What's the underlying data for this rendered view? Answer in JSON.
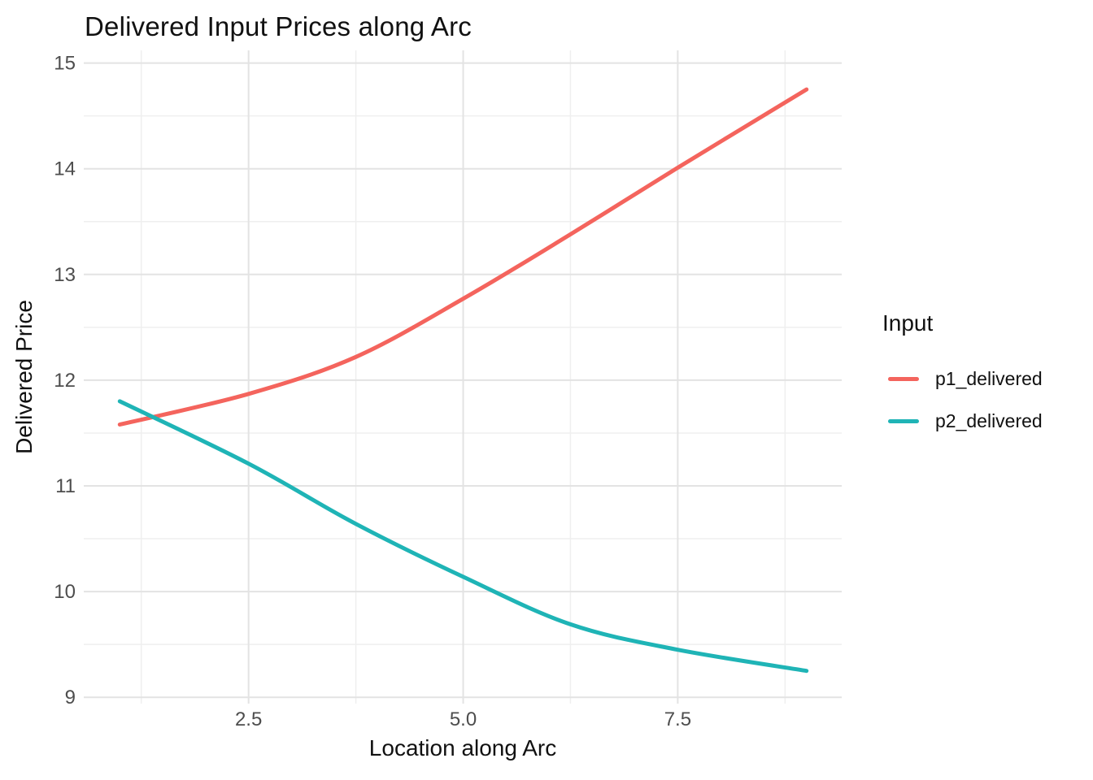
{
  "chart_data": {
    "type": "line",
    "title": "Delivered Input Prices along Arc",
    "xlabel": "Location along Arc",
    "ylabel": "Delivered Price",
    "legend_title": "Input",
    "legend_position": "right",
    "background_color": "#FFFFFF",
    "grid": {
      "show": true,
      "major_color": "#E3E3E3",
      "minor_color": "#EFEFEF",
      "tick_label_color": "#4D4D4D"
    },
    "xlim": [
      0.58,
      9.41
    ],
    "ylim": [
      8.94,
      15.12
    ],
    "x_ticks": {
      "values": [
        2.5,
        5.0,
        7.5
      ],
      "labels": [
        "2.5",
        "5.0",
        "7.5"
      ]
    },
    "x_minor": [
      1.25,
      3.75,
      6.25,
      8.75
    ],
    "y_ticks": {
      "values": [
        9,
        10,
        11,
        12,
        13,
        14,
        15
      ],
      "labels": [
        "9",
        "10",
        "11",
        "12",
        "13",
        "14",
        "15"
      ]
    },
    "y_minor": [
      9.5,
      10.5,
      11.5,
      12.5,
      13.5,
      14.5
    ],
    "x": [
      1,
      2.5,
      3.75,
      5,
      6.25,
      7.5,
      9
    ],
    "series": [
      {
        "name": "p1_delivered",
        "color": "#F4645D",
        "values": [
          11.58,
          11.87,
          12.22,
          12.77,
          13.38,
          14.01,
          14.75
        ]
      },
      {
        "name": "p2_delivered",
        "color": "#1FB4B6",
        "values": [
          11.8,
          11.21,
          10.64,
          10.14,
          9.69,
          9.45,
          9.25
        ]
      }
    ]
  }
}
